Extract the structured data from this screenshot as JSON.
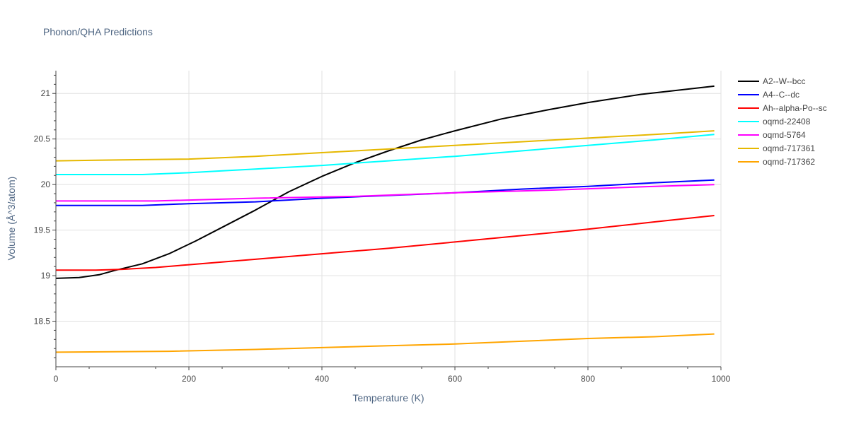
{
  "chart_data": {
    "type": "line",
    "title": "Phonon/QHA Predictions",
    "xlabel": "Temperature (K)",
    "ylabel": "Volume (Å^3/atom)",
    "xlim": [
      0,
      1000
    ],
    "ylim": [
      18.0,
      21.25
    ],
    "xticks": [
      0,
      200,
      400,
      600,
      800,
      1000
    ],
    "yticks": [
      18.5,
      19,
      19.5,
      20,
      20.5,
      21
    ],
    "grid": true,
    "legend_position": "right",
    "series": [
      {
        "name": "A2--W--bcc",
        "color": "#000000",
        "x": [
          0,
          35,
          65,
          90,
          130,
          170,
          210,
          250,
          300,
          350,
          400,
          450,
          500,
          550,
          600,
          670,
          740,
          800,
          880,
          990
        ],
        "y": [
          18.97,
          18.98,
          19.01,
          19.06,
          19.13,
          19.24,
          19.38,
          19.53,
          19.72,
          19.92,
          20.09,
          20.24,
          20.37,
          20.49,
          20.59,
          20.72,
          20.82,
          20.9,
          20.99,
          21.08
        ]
      },
      {
        "name": "A4--C--dc",
        "color": "#0000ff",
        "x": [
          0,
          130,
          200,
          300,
          400,
          500,
          600,
          700,
          800,
          900,
          990
        ],
        "y": [
          19.77,
          19.77,
          19.79,
          19.81,
          19.85,
          19.88,
          19.91,
          19.95,
          19.98,
          20.02,
          20.05
        ]
      },
      {
        "name": "Ah--alpha-Po--sc",
        "color": "#ff0000",
        "x": [
          0,
          60,
          100,
          150,
          200,
          300,
          400,
          500,
          600,
          700,
          800,
          900,
          990
        ],
        "y": [
          19.06,
          19.06,
          19.07,
          19.09,
          19.12,
          19.18,
          19.24,
          19.3,
          19.37,
          19.44,
          19.51,
          19.59,
          19.66
        ]
      },
      {
        "name": "oqmd-22408",
        "color": "#00ffff",
        "x": [
          0,
          130,
          200,
          250,
          300,
          400,
          500,
          600,
          700,
          800,
          900,
          990
        ],
        "y": [
          20.11,
          20.11,
          20.13,
          20.15,
          20.17,
          20.21,
          20.26,
          20.31,
          20.37,
          20.43,
          20.49,
          20.55
        ]
      },
      {
        "name": "oqmd-5764",
        "color": "#ff00ff",
        "x": [
          0,
          150,
          300,
          450,
          600,
          750,
          900,
          990
        ],
        "y": [
          19.82,
          19.82,
          19.85,
          19.87,
          19.91,
          19.94,
          19.98,
          20.0
        ]
      },
      {
        "name": "oqmd-717361",
        "color": "#e6b800",
        "x": [
          0,
          100,
          200,
          300,
          400,
          500,
          600,
          700,
          800,
          900,
          990
        ],
        "y": [
          20.26,
          20.27,
          20.28,
          20.31,
          20.35,
          20.39,
          20.43,
          20.47,
          20.51,
          20.55,
          20.59
        ]
      },
      {
        "name": "oqmd-717362",
        "color": "#ffa500",
        "x": [
          0,
          170,
          300,
          400,
          500,
          600,
          700,
          800,
          900,
          990
        ],
        "y": [
          18.16,
          18.17,
          18.19,
          18.21,
          18.23,
          18.25,
          18.28,
          18.31,
          18.33,
          18.36
        ]
      }
    ]
  }
}
